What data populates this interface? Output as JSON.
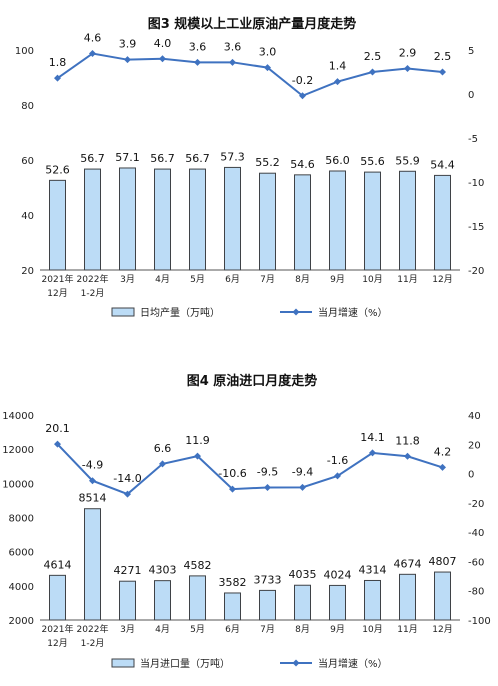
{
  "chart_data": [
    {
      "type": "bar+line",
      "title": "图3  规模以上工业原油产量月度走势",
      "categories": [
        [
          "2021年",
          "12月"
        ],
        [
          "2022年",
          "1-2月"
        ],
        [
          "3月"
        ],
        [
          "4月"
        ],
        [
          "5月"
        ],
        [
          "6月"
        ],
        [
          "7月"
        ],
        [
          "8月"
        ],
        [
          "9月"
        ],
        [
          "10月"
        ],
        [
          "11月"
        ],
        [
          "12月"
        ]
      ],
      "series": [
        {
          "name": "日均产量（万吨）",
          "kind": "bar",
          "axis": "left",
          "values": [
            52.6,
            56.7,
            57.1,
            56.7,
            56.7,
            57.3,
            55.2,
            54.6,
            56.0,
            55.6,
            55.9,
            54.4
          ],
          "labels": [
            "52.6",
            "56.7",
            "57.1",
            "56.7",
            "56.7",
            "57.3",
            "55.2",
            "54.6",
            "56.0",
            "55.6",
            "55.9",
            "54.4"
          ]
        },
        {
          "name": "当月增速（%）",
          "kind": "line",
          "axis": "right",
          "values": [
            1.8,
            4.6,
            3.9,
            4.0,
            3.6,
            3.6,
            3.0,
            -0.2,
            1.4,
            2.5,
            2.9,
            2.5
          ],
          "labels": [
            "1.8",
            "4.6",
            "3.9",
            "4.0",
            "3.6",
            "3.6",
            "3.0",
            "-0.2",
            "1.4",
            "2.5",
            "2.9",
            "2.5"
          ]
        }
      ],
      "y_left": {
        "min": 20,
        "max": 100,
        "ticks": [
          "20",
          "40",
          "60",
          "80",
          "100"
        ]
      },
      "y_right": {
        "min": -20,
        "max": 5,
        "ticks": [
          "-20",
          "-15",
          "-10",
          "-5",
          "0",
          "5"
        ]
      },
      "legend_position": "bottom",
      "colors": {
        "bar_fill": "#bcdcf6",
        "bar_stroke": "#3f4246",
        "line": "#3f72c0"
      }
    },
    {
      "type": "bar+line",
      "title": "图4  原油进口月度走势",
      "categories": [
        [
          "2021年",
          "12月"
        ],
        [
          "2022年",
          "1-2月"
        ],
        [
          "3月"
        ],
        [
          "4月"
        ],
        [
          "5月"
        ],
        [
          "6月"
        ],
        [
          "7月"
        ],
        [
          "8月"
        ],
        [
          "9月"
        ],
        [
          "10月"
        ],
        [
          "11月"
        ],
        [
          "12月"
        ]
      ],
      "series": [
        {
          "name": "当月进口量（万吨）",
          "kind": "bar",
          "axis": "left",
          "values": [
            4614,
            8514,
            4271,
            4303,
            4582,
            3582,
            3733,
            4035,
            4024,
            4314,
            4674,
            4807
          ],
          "labels": [
            "4614",
            "8514",
            "4271",
            "4303",
            "4582",
            "3582",
            "3733",
            "4035",
            "4024",
            "4314",
            "4674",
            "4807"
          ]
        },
        {
          "name": "当月增速（%）",
          "kind": "line",
          "axis": "right",
          "values": [
            20.1,
            -4.9,
            -14.0,
            6.6,
            11.9,
            -10.6,
            -9.5,
            -9.4,
            -1.6,
            14.1,
            11.8,
            4.2
          ],
          "labels": [
            "20.1",
            "-4.9",
            "-14.0",
            "6.6",
            "11.9",
            "-10.6",
            "-9.5",
            "-9.4",
            "-1.6",
            "14.1",
            "11.8",
            "4.2"
          ]
        }
      ],
      "y_left": {
        "min": 2000,
        "max": 14000,
        "ticks": [
          "2000",
          "4000",
          "6000",
          "8000",
          "10000",
          "12000",
          "14000"
        ]
      },
      "y_right": {
        "min": -100,
        "max": 40,
        "ticks": [
          "-100",
          "-80",
          "-60",
          "-40",
          "-20",
          "0",
          "20",
          "40"
        ]
      },
      "legend_position": "bottom",
      "colors": {
        "bar_fill": "#bcdcf6",
        "bar_stroke": "#3f4246",
        "line": "#3f72c0"
      }
    }
  ]
}
